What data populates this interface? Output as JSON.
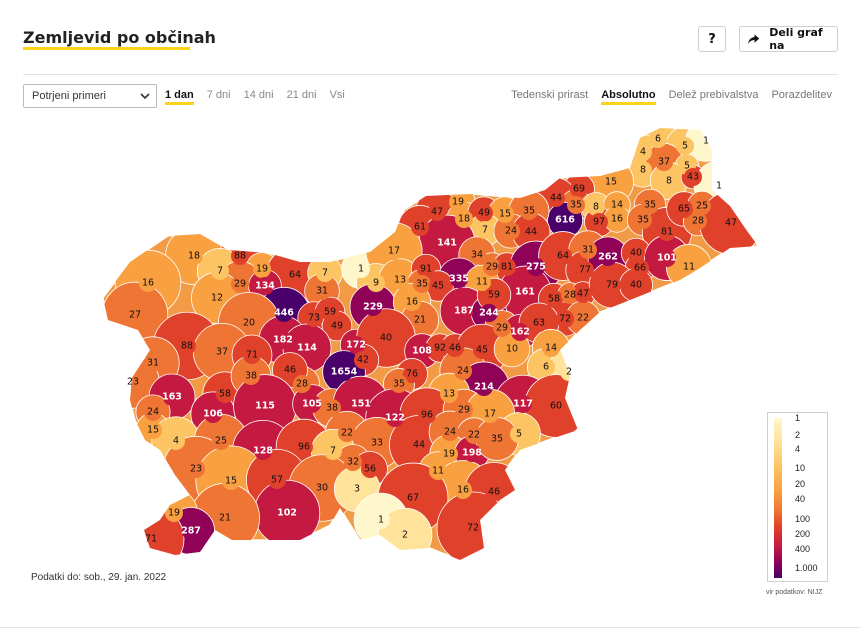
{
  "header": {
    "title": "Zemljevid po občinah",
    "help_label": "?",
    "share_label": "Deli graf na"
  },
  "controls": {
    "measure_select": "Potrjeni primeri",
    "periods": [
      "1 dan",
      "7 dni",
      "14 dni",
      "21 dni",
      "Vsi"
    ],
    "active_period": 0,
    "views": [
      "Tedenski prirast",
      "Absolutno",
      "Delež prebivalstva",
      "Porazdelitev"
    ],
    "active_view": 1
  },
  "map": {
    "color_scale": [
      "#fff7cc",
      "#ffe39a",
      "#fcc463",
      "#f9a141",
      "#ef7534",
      "#e0412b",
      "#c41a42",
      "#8f0257",
      "#4a006a"
    ],
    "legend_ticks": [
      "1",
      "2",
      "4",
      "10",
      "20",
      "40",
      "100",
      "200",
      "400",
      "1.000"
    ],
    "municipality_values": [
      "6",
      "5",
      "1",
      "4",
      "8",
      "37",
      "5",
      "8",
      "43",
      "1",
      "15",
      "69",
      "44",
      "35",
      "8",
      "14",
      "35",
      "616",
      "97",
      "16",
      "35",
      "81",
      "65",
      "25",
      "28",
      "47",
      "19",
      "47",
      "18",
      "49",
      "15",
      "35",
      "61",
      "7",
      "24",
      "44",
      "141",
      "88",
      "18",
      "19",
      "64",
      "7",
      "1",
      "17",
      "34",
      "29",
      "81",
      "275",
      "64",
      "31",
      "77",
      "262",
      "40",
      "66",
      "101",
      "11",
      "16",
      "7",
      "29",
      "134",
      "31",
      "9",
      "13",
      "91",
      "335",
      "11",
      "161",
      "58",
      "28",
      "47",
      "79",
      "40",
      "12",
      "446",
      "73",
      "59",
      "229",
      "35",
      "45",
      "187",
      "244",
      "59",
      "72",
      "22",
      "27",
      "20",
      "49",
      "16",
      "21",
      "29",
      "162",
      "63",
      "88",
      "31",
      "182",
      "114",
      "172",
      "40",
      "108",
      "92",
      "46",
      "45",
      "10",
      "14",
      "37",
      "71",
      "42",
      "76",
      "24",
      "6",
      "2",
      "23",
      "1654",
      "28",
      "35",
      "214",
      "163",
      "58",
      "38",
      "46",
      "13",
      "117",
      "60",
      "24",
      "106",
      "115",
      "105",
      "38",
      "151",
      "122",
      "96",
      "29",
      "17",
      "15",
      "4",
      "25",
      "22",
      "33",
      "44",
      "24",
      "22",
      "5",
      "128",
      "96",
      "7",
      "32",
      "56",
      "19",
      "198",
      "35",
      "23",
      "15",
      "57",
      "30",
      "3",
      "11",
      "16",
      "46",
      "67",
      "102",
      "21",
      "19",
      "287",
      "1",
      "72",
      "71",
      "2"
    ],
    "footnote": "Podatki do: sob., 29. jan. 2022",
    "source": "vir podatkov: NIJZ"
  }
}
